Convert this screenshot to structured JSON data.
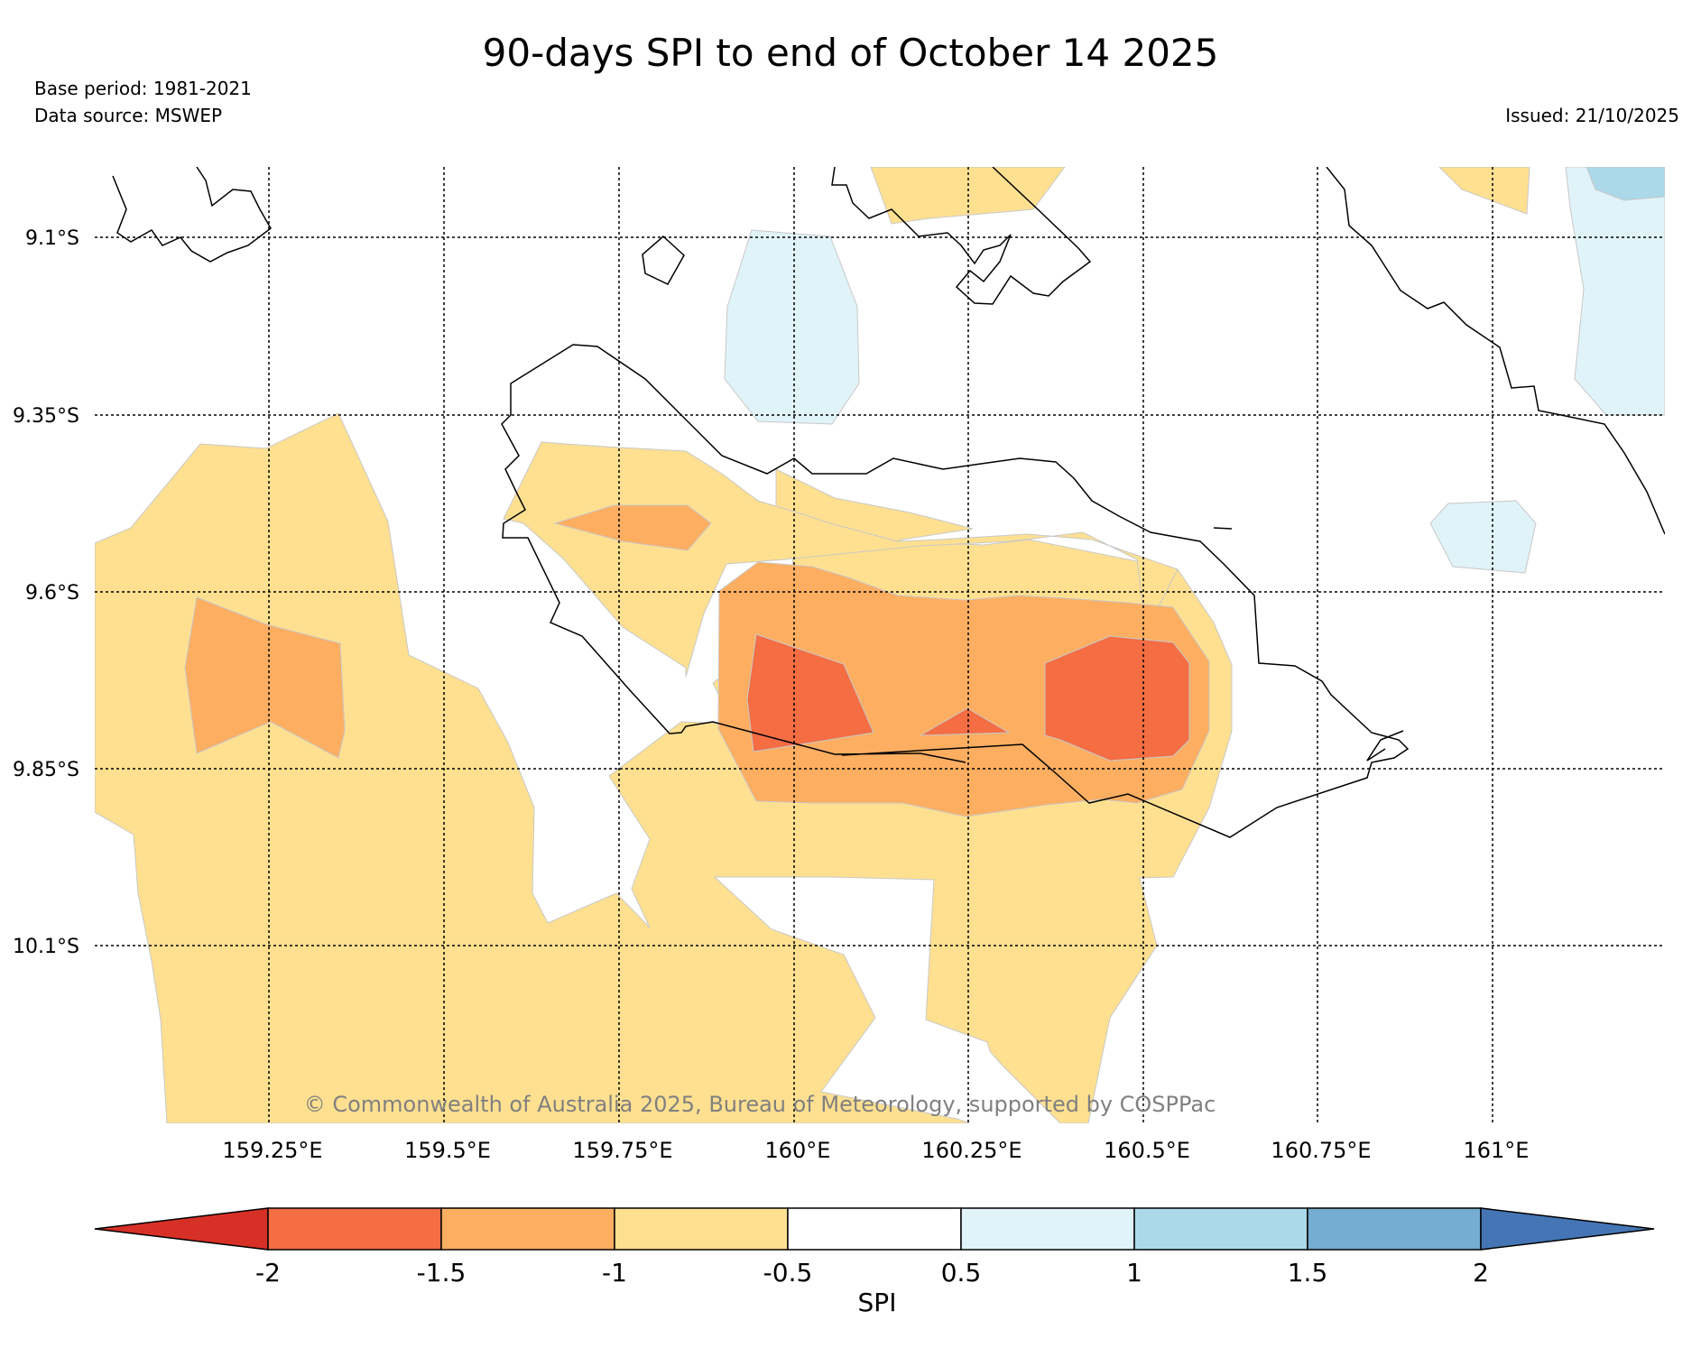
{
  "header": {
    "title": "90-days SPI to end of October 14 2025",
    "base_period": "Base period: 1981-2021",
    "data_source": "Data source: MSWEP",
    "issued": "Issued: 21/10/2025"
  },
  "map": {
    "latitude_labels": [
      "9.1°S",
      "9.35°S",
      "9.6°S",
      "9.85°S",
      "10.1°S"
    ],
    "longitude_labels": [
      "159.25°E",
      "159.5°E",
      "159.75°E",
      "160°E",
      "160.25°E",
      "160.5°E",
      "160.75°E",
      "161°E"
    ],
    "copyright": "© Commonwealth of Australia 2025, Bureau of Meteorology, supported by COSPPac"
  },
  "colorbar": {
    "label": "SPI",
    "ticks": [
      "-2",
      "-1.5",
      "-1",
      "-0.5",
      "0.5",
      "1",
      "1.5",
      "2"
    ],
    "colors": {
      "lt_-2": "#d73027",
      "-2_-1.5": "#f46d43",
      "-1.5_-1": "#fdae61",
      "-1_-0.5": "#fee090",
      "-0.5_0.5": "#ffffff",
      "0.5_1": "#e0f3f8",
      "1_1.5": "#abd9e9",
      "1.5_2": "#74add1",
      "gt_2": "#4575b4"
    }
  }
}
